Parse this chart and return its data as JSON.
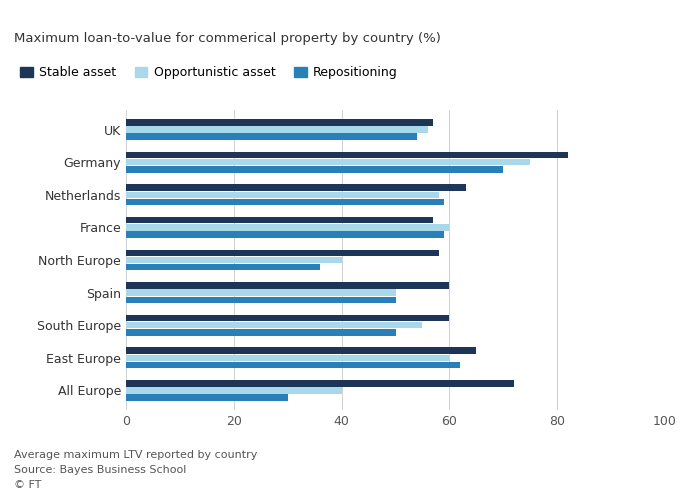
{
  "title": "Maximum loan-to-value for commerical property by country (%)",
  "categories": [
    "UK",
    "Germany",
    "Netherlands",
    "France",
    "North Europe",
    "Spain",
    "South Europe",
    "East Europe",
    "All Europe"
  ],
  "series": [
    {
      "name": "Stable asset",
      "color": "#1d3557",
      "values": [
        57,
        82,
        63,
        57,
        58,
        60,
        60,
        65,
        72
      ]
    },
    {
      "name": "Opportunistic asset",
      "color": "#a8d8ea",
      "values": [
        56,
        75,
        58,
        60,
        40,
        50,
        55,
        60,
        40
      ]
    },
    {
      "name": "Repositioning",
      "color": "#2980b9",
      "values": [
        54,
        70,
        59,
        59,
        36,
        50,
        50,
        62,
        30
      ]
    }
  ],
  "xlim": [
    0,
    100
  ],
  "xticks": [
    0,
    20,
    40,
    60,
    80,
    100
  ],
  "footer_lines": [
    "Average maximum LTV reported by country",
    "Source: Bayes Business School",
    "© FT"
  ],
  "legend_labels": [
    "Stable asset",
    "Opportunistic asset",
    "Repositioning"
  ],
  "legend_colors": [
    "#1d3557",
    "#a8d8ea",
    "#2980b9"
  ],
  "background_color": "#ffffff",
  "bar_height": 0.22
}
